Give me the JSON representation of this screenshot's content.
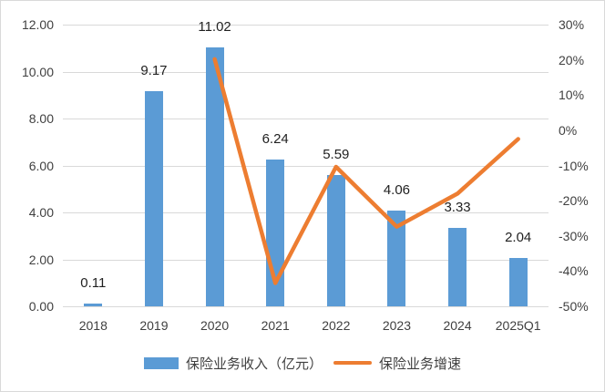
{
  "chart_data": {
    "type": "bar",
    "subtype": "combo-bar-line",
    "title": "",
    "categories": [
      "2018",
      "2019",
      "2020",
      "2021",
      "2022",
      "2023",
      "2024",
      "2025Q1"
    ],
    "series": [
      {
        "name": "保险业务收入（亿元）",
        "type": "bar",
        "axis": "left",
        "color": "#5b9bd5",
        "values": [
          0.11,
          9.17,
          11.02,
          6.24,
          5.59,
          4.06,
          3.33,
          2.04
        ],
        "data_labels": [
          "0.11",
          "9.17",
          "11.02",
          "6.24",
          "5.59",
          "4.06",
          "3.33",
          "2.04"
        ]
      },
      {
        "name": "保险业务增速",
        "type": "line",
        "axis": "right",
        "color": "#ed7d31",
        "values": [
          null,
          null,
          20.2,
          -43.4,
          -10.4,
          -27.4,
          -18.0,
          -2.5
        ]
      }
    ],
    "left_axis": {
      "min": 0,
      "max": 12,
      "ticks": [
        "12.00",
        "10.00",
        "8.00",
        "6.00",
        "4.00",
        "2.00",
        "0.00"
      ]
    },
    "right_axis": {
      "min": -50,
      "max": 30,
      "ticks": [
        "30%",
        "20%",
        "10%",
        "0%",
        "-10%",
        "-20%",
        "-30%",
        "-40%",
        "-50%"
      ]
    },
    "grid": true,
    "legend_position": "bottom"
  },
  "legend": {
    "revenue_label": "保险业务收入（亿元）",
    "growth_label": "保险业务增速"
  },
  "colors": {
    "bar": "#5b9bd5",
    "line": "#ed7d31",
    "gridline": "#d9d9d9",
    "axis_text": "#404040",
    "data_label_text": "#1f1f1f"
  }
}
